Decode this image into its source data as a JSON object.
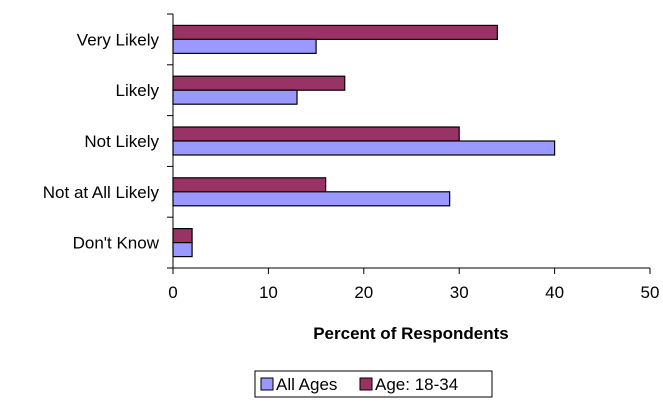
{
  "chart_data": {
    "type": "bar",
    "orientation": "horizontal",
    "categories": [
      "Very Likely",
      "Likely",
      "Not Likely",
      "Not at All Likely",
      "Don't Know"
    ],
    "series": [
      {
        "name": "Age: 18-34",
        "values": [
          34,
          18,
          30,
          16,
          2
        ],
        "color": "#993366"
      },
      {
        "name": "All Ages",
        "values": [
          15,
          13,
          40,
          29,
          2
        ],
        "color": "#9999FF"
      }
    ],
    "legend_order": [
      "All Ages",
      "Age: 18-34"
    ],
    "xlabel": "Percent of Respondents",
    "xlim": [
      0,
      50
    ],
    "xticks": [
      0,
      10,
      20,
      30,
      40,
      50
    ],
    "grid": false,
    "legend_position": "bottom"
  }
}
